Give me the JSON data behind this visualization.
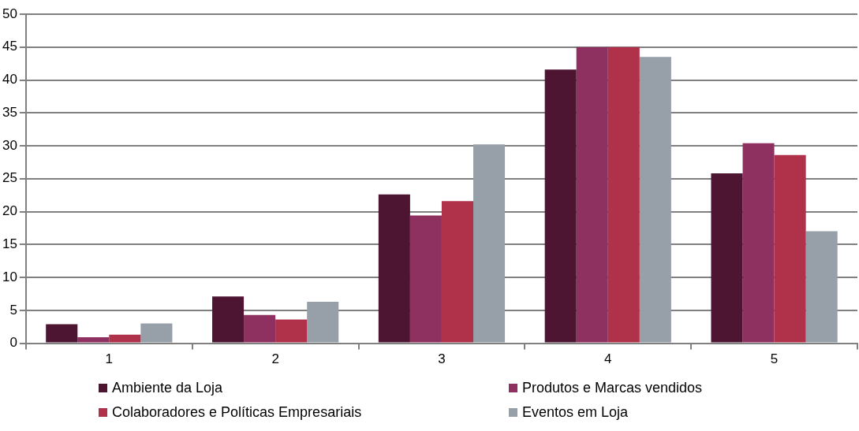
{
  "chart_data": {
    "type": "bar",
    "categories": [
      "1",
      "2",
      "3",
      "4",
      "5"
    ],
    "series": [
      {
        "name": "Ambiente da Loja",
        "color": "#4d1532",
        "values": [
          2.9,
          7.1,
          22.6,
          41.6,
          25.8
        ]
      },
      {
        "name": "Produtos e Marcas vendidos",
        "color": "#8e3060",
        "values": [
          0.9,
          4.3,
          19.4,
          45,
          30.4
        ]
      },
      {
        "name": "Colaboradores e Políticas Empresariais",
        "color": "#b0324a",
        "values": [
          1.3,
          3.6,
          21.6,
          45,
          28.6
        ]
      },
      {
        "name": "Eventos em Loja",
        "color": "#979fa8",
        "values": [
          3.0,
          6.3,
          30.2,
          43.5,
          17.0
        ]
      }
    ],
    "ylim": [
      0,
      50
    ],
    "yticks": [
      0,
      5,
      10,
      15,
      20,
      25,
      30,
      35,
      40,
      45,
      50
    ],
    "grid": "y",
    "legend": "bottom"
  }
}
